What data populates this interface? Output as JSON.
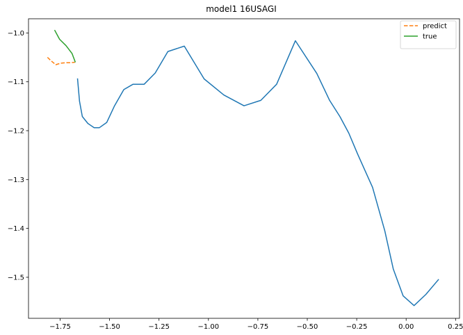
{
  "chart_data": {
    "type": "line",
    "title": "model1 16USAGI",
    "xlabel": "",
    "ylabel": "",
    "xlim": [
      -1.91,
      0.27
    ],
    "ylim": [
      -1.584,
      -0.971
    ],
    "xticks": [
      -1.75,
      -1.5,
      -1.25,
      -1.0,
      -0.75,
      -0.5,
      -0.25,
      0.0,
      0.25
    ],
    "xtick_labels": [
      "−1.75",
      "−1.50",
      "−1.25",
      "−1.00",
      "−0.75",
      "−0.50",
      "−0.25",
      "0.00",
      "0.25"
    ],
    "yticks": [
      -1.0,
      -1.1,
      -1.2,
      -1.3,
      -1.4,
      -1.5
    ],
    "ytick_labels": [
      "−1.0",
      "−1.1",
      "−1.2",
      "−1.3",
      "−1.4",
      "−1.5"
    ],
    "grid": false,
    "legend_position": "top-right",
    "series": [
      {
        "name": "",
        "color": "#1f77b4",
        "style": "solid",
        "x": [
          -1.662,
          -1.652,
          -1.638,
          -1.61,
          -1.578,
          -1.552,
          -1.514,
          -1.476,
          -1.428,
          -1.381,
          -1.325,
          -1.269,
          -1.205,
          -1.122,
          -1.022,
          -0.922,
          -0.82,
          -0.735,
          -0.655,
          -0.56,
          -0.452,
          -0.387,
          -0.335,
          -0.29,
          -0.245,
          -0.17,
          -0.108,
          -0.065,
          -0.015,
          0.04,
          0.1,
          0.165
        ],
        "y": [
          -1.093,
          -1.14,
          -1.171,
          -1.185,
          -1.194,
          -1.194,
          -1.183,
          -1.15,
          -1.116,
          -1.105,
          -1.105,
          -1.082,
          -1.038,
          -1.027,
          -1.094,
          -1.127,
          -1.149,
          -1.138,
          -1.105,
          -1.016,
          -1.083,
          -1.138,
          -1.171,
          -1.205,
          -1.248,
          -1.316,
          -1.405,
          -1.483,
          -1.538,
          -1.558,
          -1.535,
          -1.504
        ]
      },
      {
        "name": "predict",
        "color": "#ff7f0e",
        "style": "dashed",
        "x": [
          -1.814,
          -1.793,
          -1.772,
          -1.749,
          -1.723,
          -1.702,
          -1.676
        ],
        "y": [
          -1.05,
          -1.058,
          -1.065,
          -1.062,
          -1.061,
          -1.061,
          -1.06
        ]
      },
      {
        "name": "true",
        "color": "#2ca02c",
        "style": "solid",
        "x": [
          -1.778,
          -1.753,
          -1.72,
          -1.69,
          -1.673
        ],
        "y": [
          -0.994,
          -1.013,
          -1.026,
          -1.042,
          -1.06
        ]
      }
    ]
  }
}
